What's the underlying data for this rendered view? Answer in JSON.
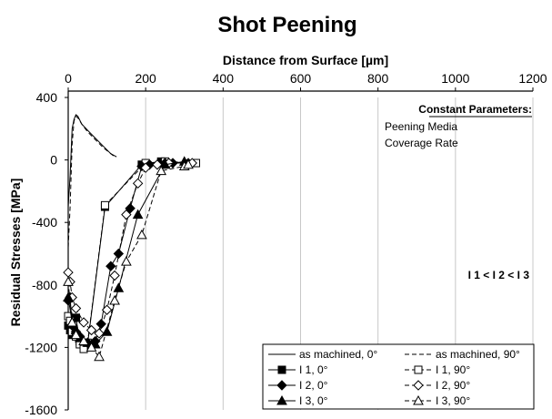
{
  "chart_data": {
    "type": "line",
    "title": "Shot Peening",
    "xlabel": "Distance from Surface [µm]",
    "ylabel": "Residual Stresses [MPa]",
    "xlim": [
      0,
      1200
    ],
    "ylim": [
      -1600,
      400
    ],
    "x_ticks": [
      0,
      200,
      400,
      600,
      800,
      1000,
      1200
    ],
    "y_ticks": [
      400,
      0,
      -400,
      -800,
      -1200,
      -1600
    ],
    "x_axis_position": "top",
    "grid": "vertical",
    "annotations": {
      "constant_title": "Constant Parameters:",
      "constant_items": [
        "Peening Media",
        "Coverage Rate"
      ],
      "intensity_order": "I 1 < I 2 < I 3"
    },
    "legend_position": "bottom-right",
    "series": [
      {
        "name": "as machined, 0°",
        "style": "solid",
        "marker": "none",
        "x": [
          0,
          5,
          10,
          15,
          20,
          25,
          35,
          50,
          70,
          90,
          110,
          125
        ],
        "y": [
          -300,
          -100,
          200,
          260,
          290,
          280,
          230,
          190,
          140,
          90,
          40,
          20
        ]
      },
      {
        "name": "as machined, 90°",
        "style": "dashed",
        "marker": "none",
        "x": [
          0,
          5,
          10,
          15,
          20,
          25,
          35,
          50,
          70,
          90,
          110,
          120
        ],
        "y": [
          -560,
          -300,
          100,
          250,
          280,
          270,
          230,
          180,
          130,
          80,
          40,
          20
        ]
      },
      {
        "name": "I 1, 0°",
        "style": "solid",
        "marker": "square-filled",
        "x": [
          0,
          5,
          10,
          15,
          20,
          30,
          50,
          95,
          190,
          240
        ],
        "y": [
          -1060,
          -1090,
          -1120,
          -1100,
          -1010,
          -1160,
          -1180,
          -300,
          -30,
          -10
        ]
      },
      {
        "name": "I 1, 90°",
        "style": "dashed",
        "marker": "square-open",
        "x": [
          0,
          5,
          10,
          20,
          30,
          40,
          50,
          95,
          200,
          250,
          330
        ],
        "y": [
          -1000,
          -1030,
          -1100,
          -1130,
          -1180,
          -1210,
          -1170,
          -290,
          -20,
          -10,
          -20
        ]
      },
      {
        "name": "I 2, 0°",
        "style": "solid",
        "marker": "diamond-filled",
        "x": [
          0,
          5,
          10,
          20,
          30,
          50,
          70,
          85,
          110,
          130,
          160,
          190,
          210,
          250,
          270,
          310
        ],
        "y": [
          -900,
          -880,
          -1060,
          -1100,
          -1130,
          -1170,
          -1160,
          -1050,
          -680,
          -600,
          -310,
          -40,
          -30,
          -20,
          -20,
          -20
        ]
      },
      {
        "name": "I 2, 90°",
        "style": "dashed",
        "marker": "diamond-open",
        "x": [
          0,
          5,
          10,
          20,
          40,
          60,
          80,
          100,
          120,
          150,
          180,
          200,
          230,
          260,
          320
        ],
        "y": [
          -720,
          -780,
          -880,
          -950,
          -1040,
          -1090,
          -1110,
          -960,
          -740,
          -350,
          -150,
          -50,
          -30,
          -20,
          -20
        ]
      },
      {
        "name": "I 3, 0°",
        "style": "solid",
        "marker": "triangle-filled",
        "x": [
          0,
          10,
          20,
          30,
          50,
          70,
          100,
          130,
          180,
          250,
          300
        ],
        "y": [
          -880,
          -1040,
          -1090,
          -1140,
          -1170,
          -1180,
          -1100,
          -820,
          -350,
          -30,
          -10
        ]
      },
      {
        "name": "I 3, 90°",
        "style": "dashed",
        "marker": "triangle-open",
        "x": [
          0,
          10,
          20,
          40,
          60,
          80,
          120,
          150,
          190,
          240,
          300,
          310
        ],
        "y": [
          -780,
          -1040,
          -1120,
          -1160,
          -1200,
          -1260,
          -900,
          -650,
          -480,
          -70,
          -40,
          -30
        ]
      }
    ]
  }
}
